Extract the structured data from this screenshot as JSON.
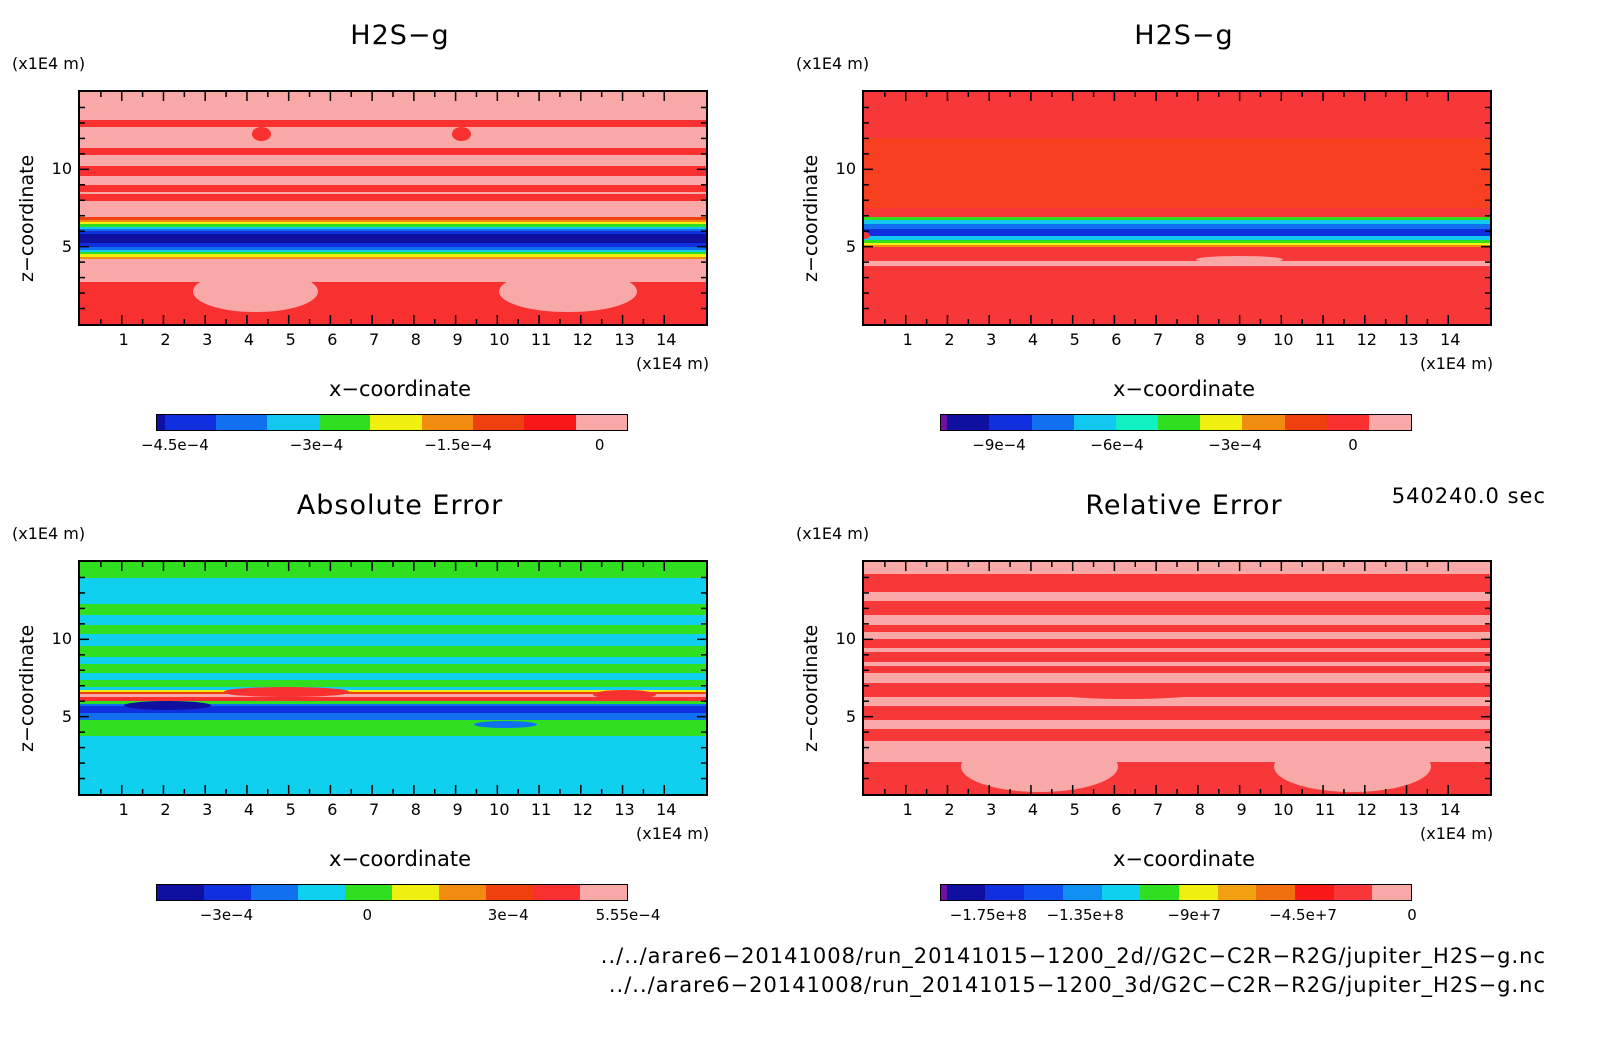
{
  "panels": [
    {
      "title": "H2S−g",
      "unit_y": "(x1E4 m)",
      "unit_x": "(x1E4 m)",
      "xlabel": "x−coordinate",
      "ylabel": "z−coordinate",
      "xticks": [
        "1",
        "2",
        "3",
        "4",
        "5",
        "6",
        "7",
        "8",
        "9",
        "10",
        "11",
        "12",
        "13",
        "14"
      ],
      "yticks": [
        "10",
        "5"
      ],
      "colorbar_labels": [
        "−4.5e−4",
        "−3e−4",
        "−1.5e−4",
        "0"
      ],
      "colorbar_colors": [
        "#1010a0",
        "#1030e0",
        "#1070f0",
        "#10c8f0",
        "#30e020",
        "#f0f010",
        "#f08c10",
        "#f04010",
        "#f81818",
        "#f9a8a8"
      ]
    },
    {
      "title": "H2S−g",
      "unit_y": "(x1E4 m)",
      "unit_x": "(x1E4 m)",
      "xlabel": "x−coordinate",
      "ylabel": "z−coordinate",
      "xticks": [
        "1",
        "2",
        "3",
        "4",
        "5",
        "6",
        "7",
        "8",
        "9",
        "10",
        "11",
        "12",
        "13",
        "14"
      ],
      "yticks": [
        "10",
        "5"
      ],
      "colorbar_labels": [
        "−9e−4",
        "−6e−4",
        "−3e−4",
        "0"
      ],
      "colorbar_colors": [
        "#7010a0",
        "#1010a0",
        "#1030e0",
        "#1070f0",
        "#10c8f0",
        "#10f0c0",
        "#30e020",
        "#f0f010",
        "#f08c10",
        "#f04010",
        "#f83030",
        "#f9a8a8"
      ]
    },
    {
      "title": "Absolute Error",
      "unit_y": "(x1E4 m)",
      "unit_x": "(x1E4 m)",
      "xlabel": "x−coordinate",
      "ylabel": "z−coordinate",
      "xticks": [
        "1",
        "2",
        "3",
        "4",
        "5",
        "6",
        "7",
        "8",
        "9",
        "10",
        "11",
        "12",
        "13",
        "14"
      ],
      "yticks": [
        "10",
        "5"
      ],
      "colorbar_labels": [
        "−3e−4",
        "0",
        "3e−4",
        "5.55e−4"
      ],
      "colorbar_colors": [
        "#1010a0",
        "#1030e0",
        "#1070f0",
        "#10d0f0",
        "#30e020",
        "#f0f010",
        "#f08c10",
        "#f04010",
        "#f83030",
        "#f9a8a8"
      ]
    },
    {
      "title": "Relative Error",
      "unit_y": "(x1E4 m)",
      "unit_x": "(x1E4 m)",
      "xlabel": "x−coordinate",
      "ylabel": "z−coordinate",
      "xticks": [
        "1",
        "2",
        "3",
        "4",
        "5",
        "6",
        "7",
        "8",
        "9",
        "10",
        "11",
        "12",
        "13",
        "14"
      ],
      "yticks": [
        "10",
        "5"
      ],
      "colorbar_labels": [
        "−1.75e+8",
        "−1.35e+8",
        "−9e+7",
        "−4.5e+7",
        "0"
      ],
      "colorbar_colors": [
        "#7010a0",
        "#1010a0",
        "#1030e0",
        "#1050f0",
        "#1090f0",
        "#10d0f0",
        "#30e020",
        "#f0f010",
        "#f0a010",
        "#f07010",
        "#f81818",
        "#f83838",
        "#f9a8a8"
      ]
    }
  ],
  "time_label": "540240.0 sec",
  "footer_lines": [
    "../../arare6−20141008/run_20141015−1200_2d//G2C−C2R−R2G/jupiter_H2S−g.nc",
    "../../arare6−20141008/run_20141015−1200_3d/G2C−C2R−R2G/jupiter_H2S−g.nc"
  ],
  "chart_data": [
    {
      "type": "heatmap",
      "title": "H2S−g",
      "xlabel": "x−coordinate",
      "ylabel": "z−coordinate",
      "xlim": [
        0,
        15
      ],
      "ylim": [
        0,
        15
      ],
      "x_unit": "(x1E4 m)",
      "y_unit": "(x1E4 m)",
      "colorbar": {
        "min": -0.00047,
        "max": 3e-05,
        "ticks": [
          -0.00045,
          -0.0003,
          -0.00015,
          0
        ]
      }
    },
    {
      "type": "heatmap",
      "title": "H2S−g",
      "xlabel": "x−coordinate",
      "ylabel": "z−coordinate",
      "xlim": [
        0,
        15
      ],
      "ylim": [
        0,
        15
      ],
      "x_unit": "(x1E4 m)",
      "y_unit": "(x1E4 m)",
      "colorbar": {
        "min": -0.00105,
        "max": 0.00015,
        "ticks": [
          -0.0009,
          -0.0006,
          -0.0003,
          0
        ]
      }
    },
    {
      "type": "heatmap",
      "title": "Absolute Error",
      "xlabel": "x−coordinate",
      "ylabel": "z−coordinate",
      "xlim": [
        0,
        15
      ],
      "ylim": [
        0,
        15
      ],
      "x_unit": "(x1E4 m)",
      "y_unit": "(x1E4 m)",
      "colorbar": {
        "min": -0.00045,
        "max": 0.000555,
        "ticks": [
          -0.0003,
          0,
          0.0003,
          0.000555
        ]
      }
    },
    {
      "type": "heatmap",
      "title": "Relative Error",
      "xlabel": "x−coordinate",
      "ylabel": "z−coordinate",
      "xlim": [
        0,
        15
      ],
      "ylim": [
        0,
        15
      ],
      "x_unit": "(x1E4 m)",
      "y_unit": "(x1E4 m)",
      "colorbar": {
        "min": -195000000,
        "max": 0,
        "ticks": [
          -175000000,
          -135000000,
          -90000000,
          -45000000,
          0
        ]
      }
    }
  ]
}
